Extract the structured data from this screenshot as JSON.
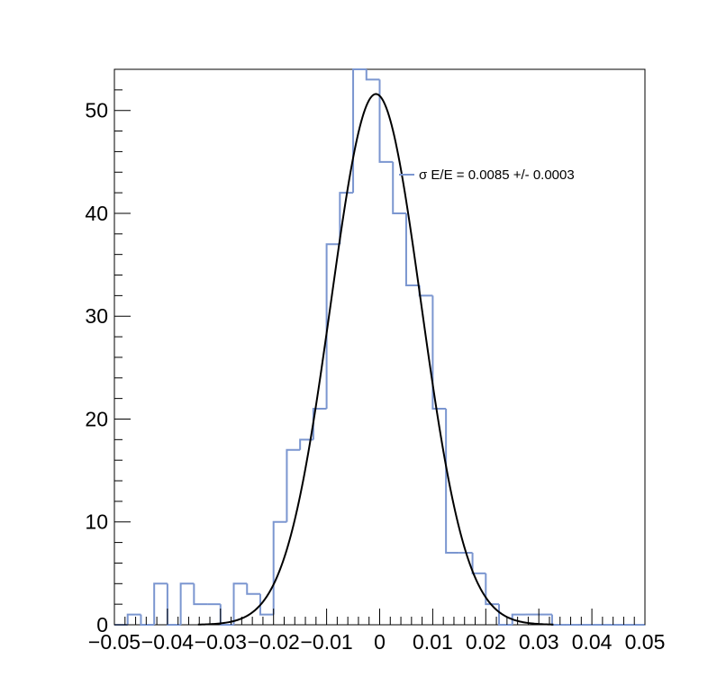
{
  "chart_data": {
    "type": "histogram",
    "title": "",
    "xlabel": "",
    "ylabel": "",
    "xlim": [
      -0.05,
      0.05
    ],
    "ylim": [
      0,
      54
    ],
    "x_ticks": [
      -0.05,
      -0.04,
      -0.03,
      -0.02,
      -0.01,
      0,
      0.01,
      0.02,
      0.03,
      0.04,
      0.05
    ],
    "x_tick_labels": [
      "−0.05",
      "−0.04",
      "−0.03",
      "−0.02",
      "−0.01",
      "0",
      "0.01",
      "0.02",
      "0.03",
      "0.04",
      "0.05"
    ],
    "y_ticks": [
      0,
      10,
      20,
      30,
      40,
      50
    ],
    "y_tick_labels": [
      "0",
      "10",
      "20",
      "30",
      "40",
      "50"
    ],
    "grid": false,
    "histogram": {
      "color": "#7b96d0",
      "bin_edges": [
        -0.05,
        -0.0475,
        -0.045,
        -0.0425,
        -0.04,
        -0.0375,
        -0.035,
        -0.0325,
        -0.03,
        -0.0275,
        -0.025,
        -0.0225,
        -0.02,
        -0.0175,
        -0.015,
        -0.0125,
        -0.01,
        -0.0075,
        -0.005,
        -0.0025,
        0,
        0.0025,
        0.005,
        0.0075,
        0.01,
        0.0125,
        0.015,
        0.0175,
        0.02,
        0.0225,
        0.025,
        0.0275,
        0.03,
        0.0325,
        0.035,
        0.0375,
        0.04,
        0.0425,
        0.045,
        0.0475,
        0.05
      ],
      "counts": [
        0,
        1,
        0,
        4,
        0,
        4,
        2,
        2,
        0,
        4,
        3,
        1,
        10,
        17,
        18,
        21,
        37,
        42,
        54,
        53,
        45,
        40,
        33,
        32,
        21,
        7,
        7,
        5,
        2,
        0,
        1,
        1,
        1,
        0,
        0,
        0,
        0,
        0,
        0,
        0
      ]
    },
    "fit": {
      "type": "gaussian",
      "color": "#000000",
      "amplitude": 51.6,
      "mean": -0.0007,
      "sigma": 0.0085
    },
    "legend": {
      "label": "σ E/E = 0.0085 +/- 0.0003",
      "placement": "upper-right"
    }
  }
}
